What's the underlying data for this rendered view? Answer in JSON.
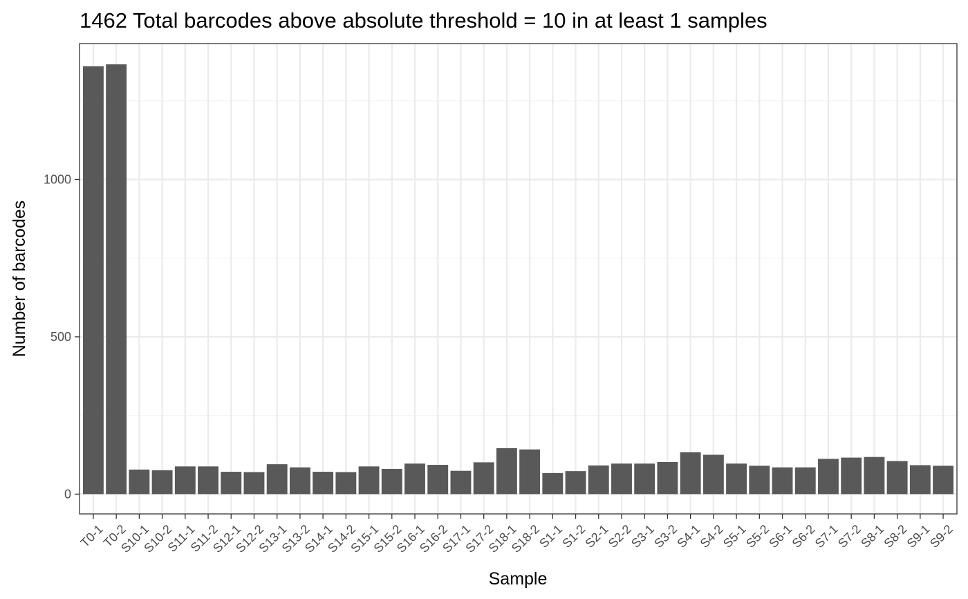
{
  "chart_data": {
    "type": "bar",
    "title": "1462 Total barcodes above absolute threshold = 10 in at least 1 samples",
    "xlabel": "Sample",
    "ylabel": "Number of barcodes",
    "categories": [
      "T0-1",
      "T0-2",
      "S10-1",
      "S10-2",
      "S11-1",
      "S11-2",
      "S12-1",
      "S12-2",
      "S13-1",
      "S13-2",
      "S14-1",
      "S14-2",
      "S15-1",
      "S15-2",
      "S16-1",
      "S16-2",
      "S17-1",
      "S17-2",
      "S18-1",
      "S18-2",
      "S1-1",
      "S1-2",
      "S2-1",
      "S2-2",
      "S3-1",
      "S3-2",
      "S4-1",
      "S4-2",
      "S5-1",
      "S5-2",
      "S6-1",
      "S6-2",
      "S7-1",
      "S7-2",
      "S8-1",
      "S8-2",
      "S9-1",
      "S9-2"
    ],
    "values": [
      1360,
      1366,
      78,
      76,
      88,
      88,
      71,
      70,
      95,
      85,
      71,
      70,
      88,
      80,
      97,
      93,
      74,
      101,
      146,
      142,
      67,
      73,
      91,
      97,
      97,
      102,
      133,
      125,
      97,
      90,
      85,
      85,
      112,
      116,
      118,
      105,
      92,
      90
    ],
    "ylim": [
      -63,
      1432
    ],
    "yticks": [
      0,
      500,
      1000
    ],
    "ytick_labels": [
      "0",
      "500",
      "1000"
    ],
    "grid": true,
    "bar_color": "#595959"
  }
}
